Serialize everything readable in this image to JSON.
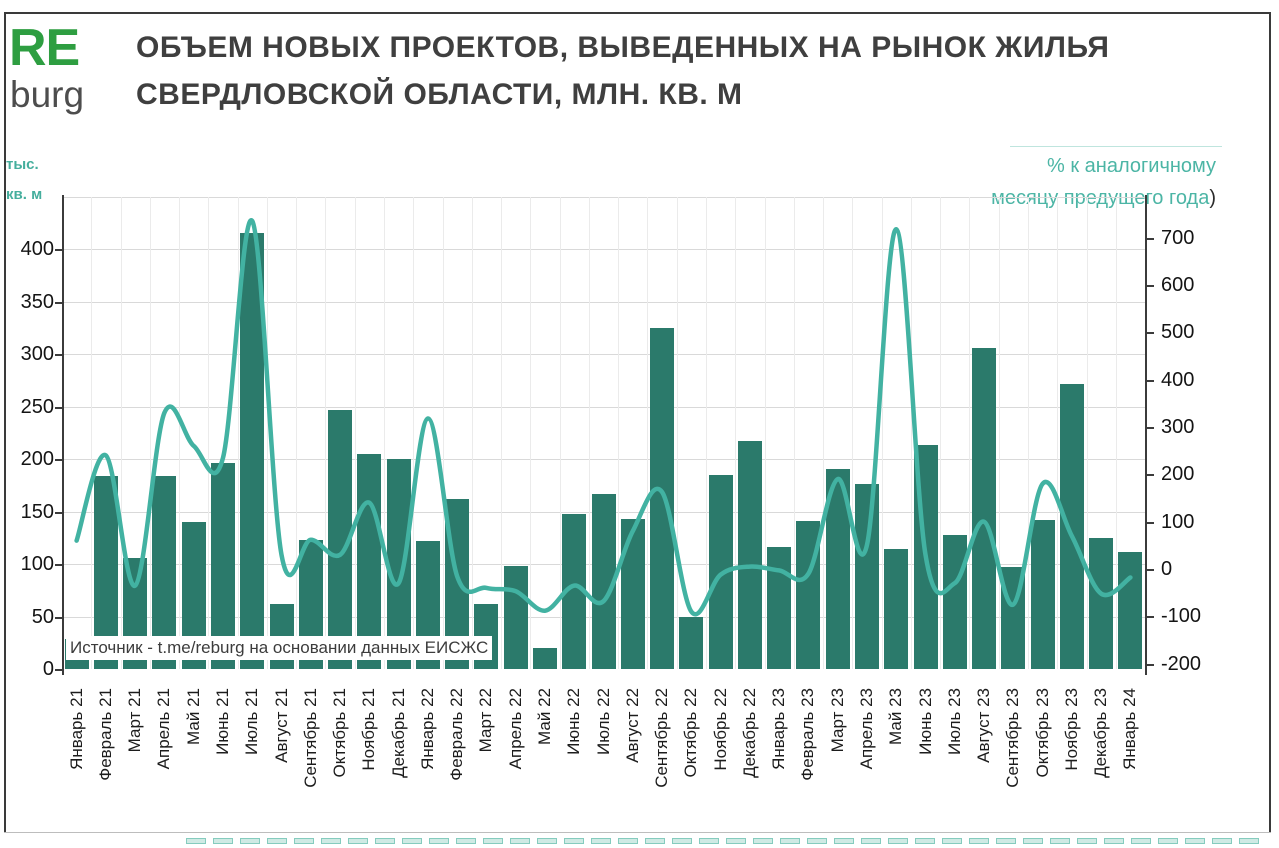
{
  "logo": {
    "re": "RE",
    "burg": "burg"
  },
  "title": {
    "line1": "ОБЪЕМ НОВЫХ ПРОЕКТОВ, ВЫВЕДЕННЫХ НА РЫНОК ЖИЛЬЯ",
    "line2": "СВЕРДЛОВСКОЙ ОБЛАСТИ, МЛН. КВ. М"
  },
  "left_axis": {
    "unit_line1": "тыс.",
    "unit_line2": "кв. м",
    "ticks": [
      400,
      350,
      300,
      250,
      200,
      150,
      100,
      50,
      0
    ]
  },
  "right_axis": {
    "label_line1": "% к аналогичному",
    "label_line2": "месяцу предущего года",
    "label_suffix": ")",
    "ticks": [
      700,
      600,
      500,
      400,
      300,
      200,
      100,
      0,
      -100,
      -200
    ]
  },
  "source": "Источник - t.me/reburg на основании данных ЕИСЖС",
  "chart_data": {
    "type": "bar+line",
    "categories": [
      "Январь 21",
      "Февраль 21",
      "Март 21",
      "Апрель 21",
      "Май 21",
      "Июнь 21",
      "Июль 21",
      "Август 21",
      "Сентябрь 21",
      "Октябрь 21",
      "Ноябрь 21",
      "Декабрь 21",
      "Январь 22",
      "Февраль 22",
      "Март 22",
      "Апрель 22",
      "Май 22",
      "Июнь 22",
      "Июль 22",
      "Август 22",
      "Сентябрь 22",
      "Октябрь 22",
      "Ноябрь 22",
      "Декабрь 22",
      "Январь 23",
      "Февраль 23",
      "Март 23",
      "Апрель 23",
      "Май 23",
      "Июнь 23",
      "Июль 23",
      "Август 23",
      "Сентябрь 23",
      "Октябрь 23",
      "Ноябрь 23",
      "Декабрь 23",
      "Январь 24"
    ],
    "series": [
      {
        "name": "Объем новых проектов, тыс. кв. м",
        "type": "bar",
        "axis": "left",
        "values": [
          29,
          184,
          106,
          184,
          140,
          196,
          416,
          62,
          123,
          247,
          205,
          200,
          122,
          162,
          62,
          98,
          20,
          148,
          167,
          143,
          325,
          50,
          185,
          217,
          116,
          141,
          191,
          176,
          114,
          214,
          128,
          306,
          97,
          142,
          272,
          125,
          112
        ]
      },
      {
        "name": "% к аналогичному месяцу предущего года",
        "type": "line",
        "axis": "right",
        "values": [
          60,
          240,
          -35,
          330,
          260,
          235,
          735,
          30,
          62,
          30,
          140,
          -30,
          318,
          -15,
          -40,
          -47,
          -88,
          -35,
          -68,
          80,
          163,
          -90,
          -12,
          5,
          -3,
          -10,
          190,
          50,
          718,
          30,
          -30,
          100,
          -75,
          180,
          70,
          -52,
          -18
        ]
      }
    ],
    "left_ylim": [
      0,
      450
    ],
    "right_ylim": [
      -200,
      750
    ],
    "grid": "horizontal",
    "legend_position": "none",
    "colors": {
      "bar": "#2b7a6b",
      "line": "#42b2a2"
    }
  }
}
